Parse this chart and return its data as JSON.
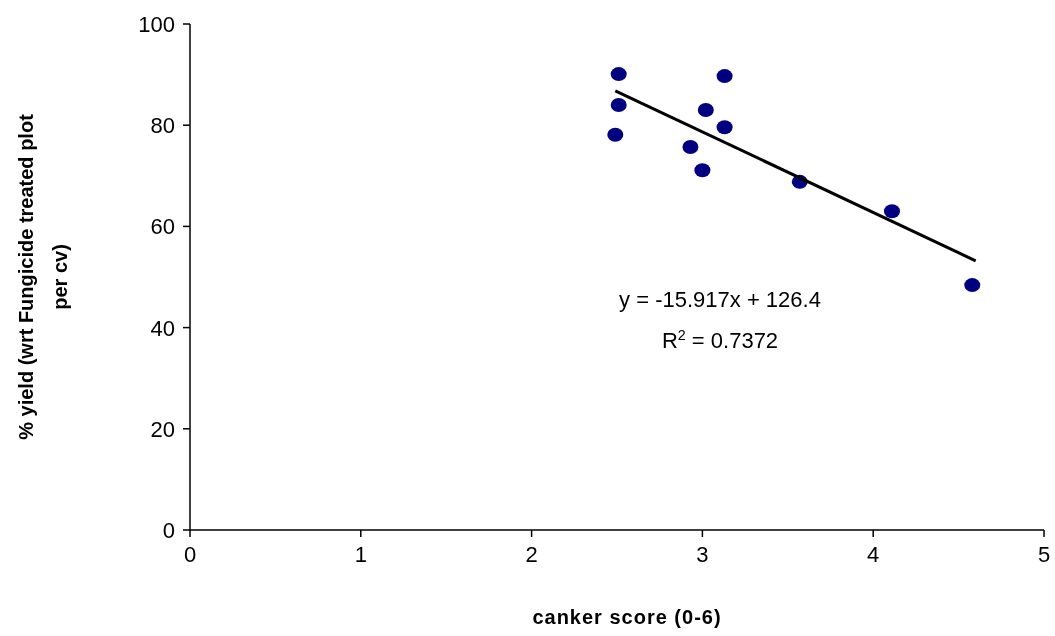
{
  "chart_data": {
    "type": "scatter",
    "xlabel": "canker score (0-6)",
    "ylabel": "% yield (wrt Fungicide treated plot per cv)",
    "xlim": [
      0,
      5
    ],
    "xticks": [
      0,
      1,
      2,
      3,
      4,
      5
    ],
    "ylim": [
      0,
      100
    ],
    "yticks": [
      0,
      20,
      40,
      60,
      80,
      100
    ],
    "grid": false,
    "series": [
      {
        "color": "#000080",
        "marker": "circle",
        "x": [
          2.51,
          2.51,
          2.49,
          2.93,
          3.0,
          3.02,
          3.13,
          3.13,
          3.57,
          4.11,
          4.58
        ],
        "values": [
          90.1,
          84.0,
          78.1,
          75.7,
          71.1,
          83.0,
          89.7,
          79.6,
          68.8,
          63.0,
          48.4
        ]
      },
      {
        "type": "line",
        "color": "#000000",
        "line_style": "solid",
        "x": [
          2.49,
          4.6
        ],
        "values": [
          86.8,
          53.2
        ]
      }
    ],
    "annotations": [
      "y = -15.917x + 126.4",
      "R$^{2}$ = 0.7372"
    ]
  }
}
